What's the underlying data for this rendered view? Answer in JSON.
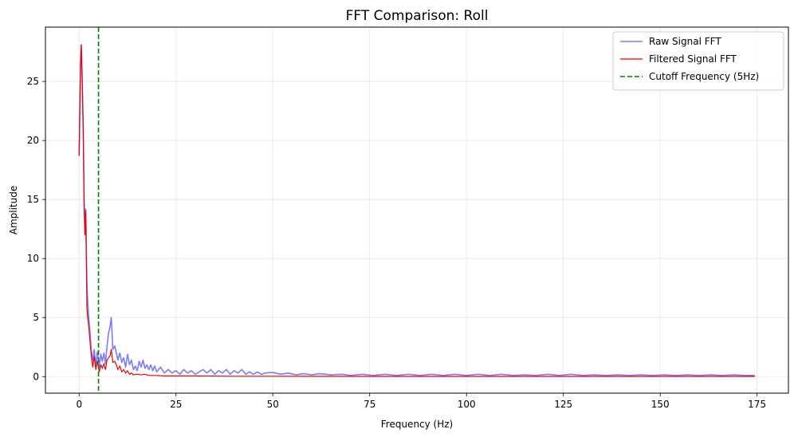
{
  "chart_data": {
    "type": "line",
    "title": "FFT Comparison: Roll",
    "xlabel": "Frequency (Hz)",
    "ylabel": "Amplitude",
    "xlim": [
      -8.7,
      183.1
    ],
    "ylim": [
      -1.4,
      29.6
    ],
    "xticks": [
      0,
      25,
      50,
      75,
      100,
      125,
      150,
      175
    ],
    "yticks": [
      0,
      5,
      10,
      15,
      20,
      25
    ],
    "grid": true,
    "legend_position": "top-right",
    "series": [
      {
        "name": "Raw Signal FFT",
        "color": "#7b7bff",
        "points": [
          [
            0.0,
            18.7
          ],
          [
            0.35,
            26.5
          ],
          [
            0.55,
            28.1
          ],
          [
            0.8,
            25.0
          ],
          [
            1.05,
            21.0
          ],
          [
            1.3,
            14.8
          ],
          [
            1.5,
            12.1
          ],
          [
            1.7,
            14.2
          ],
          [
            2.0,
            8.0
          ],
          [
            2.2,
            6.4
          ],
          [
            2.5,
            4.9
          ],
          [
            2.8,
            3.8
          ],
          [
            3.1,
            2.3
          ],
          [
            3.5,
            1.4
          ],
          [
            3.9,
            2.3
          ],
          [
            4.3,
            0.9
          ],
          [
            4.7,
            2.1
          ],
          [
            5.2,
            0.8
          ],
          [
            5.6,
            1.9
          ],
          [
            6.0,
            1.3
          ],
          [
            6.4,
            2.0
          ],
          [
            6.8,
            1.1
          ],
          [
            7.2,
            2.6
          ],
          [
            7.6,
            3.7
          ],
          [
            8.0,
            4.3
          ],
          [
            8.3,
            5.0
          ],
          [
            8.7,
            2.3
          ],
          [
            9.2,
            2.6
          ],
          [
            9.6,
            2.0
          ],
          [
            10.0,
            1.4
          ],
          [
            10.5,
            2.0
          ],
          [
            11.0,
            1.2
          ],
          [
            11.5,
            1.6
          ],
          [
            12.0,
            0.8
          ],
          [
            12.5,
            1.9
          ],
          [
            13.0,
            1.0
          ],
          [
            13.5,
            1.4
          ],
          [
            14.0,
            0.6
          ],
          [
            14.5,
            0.9
          ],
          [
            15.0,
            0.5
          ],
          [
            15.5,
            1.3
          ],
          [
            16.0,
            0.8
          ],
          [
            16.5,
            1.4
          ],
          [
            17.0,
            0.7
          ],
          [
            17.5,
            1.0
          ],
          [
            18.0,
            0.6
          ],
          [
            18.5,
            1.0
          ],
          [
            19.0,
            0.5
          ],
          [
            19.5,
            0.9
          ],
          [
            20.0,
            0.4
          ],
          [
            21.0,
            0.8
          ],
          [
            22.0,
            0.3
          ],
          [
            23.0,
            0.6
          ],
          [
            24.0,
            0.3
          ],
          [
            25.0,
            0.5
          ],
          [
            26.0,
            0.2
          ],
          [
            27.0,
            0.6
          ],
          [
            28.0,
            0.3
          ],
          [
            29.0,
            0.5
          ],
          [
            30.0,
            0.2
          ],
          [
            31.0,
            0.4
          ],
          [
            32.0,
            0.6
          ],
          [
            33.0,
            0.3
          ],
          [
            34.0,
            0.6
          ],
          [
            35.0,
            0.2
          ],
          [
            36.0,
            0.5
          ],
          [
            37.0,
            0.3
          ],
          [
            38.0,
            0.6
          ],
          [
            39.0,
            0.2
          ],
          [
            40.0,
            0.5
          ],
          [
            41.0,
            0.3
          ],
          [
            42.0,
            0.6
          ],
          [
            43.0,
            0.2
          ],
          [
            44.0,
            0.4
          ],
          [
            45.0,
            0.2
          ],
          [
            46.0,
            0.4
          ],
          [
            47.0,
            0.2
          ],
          [
            48.0,
            0.3
          ],
          [
            50.0,
            0.35
          ],
          [
            52.0,
            0.2
          ],
          [
            54.0,
            0.3
          ],
          [
            56.0,
            0.15
          ],
          [
            58.0,
            0.25
          ],
          [
            60.0,
            0.15
          ],
          [
            62.0,
            0.25
          ],
          [
            65.0,
            0.15
          ],
          [
            68.0,
            0.2
          ],
          [
            70.0,
            0.1
          ],
          [
            73.0,
            0.2
          ],
          [
            76.0,
            0.1
          ],
          [
            79.0,
            0.2
          ],
          [
            82.0,
            0.1
          ],
          [
            85.0,
            0.2
          ],
          [
            88.0,
            0.1
          ],
          [
            91.0,
            0.2
          ],
          [
            94.0,
            0.1
          ],
          [
            97.0,
            0.2
          ],
          [
            100.0,
            0.1
          ],
          [
            103.0,
            0.2
          ],
          [
            106.0,
            0.1
          ],
          [
            109.0,
            0.2
          ],
          [
            112.0,
            0.1
          ],
          [
            115.0,
            0.15
          ],
          [
            118.0,
            0.1
          ],
          [
            121.0,
            0.2
          ],
          [
            124.0,
            0.1
          ],
          [
            127.0,
            0.2
          ],
          [
            130.0,
            0.1
          ],
          [
            133.0,
            0.15
          ],
          [
            136.0,
            0.1
          ],
          [
            139.0,
            0.15
          ],
          [
            142.0,
            0.1
          ],
          [
            145.0,
            0.15
          ],
          [
            148.0,
            0.1
          ],
          [
            151.0,
            0.15
          ],
          [
            154.0,
            0.1
          ],
          [
            157.0,
            0.15
          ],
          [
            160.0,
            0.1
          ],
          [
            163.0,
            0.15
          ],
          [
            166.0,
            0.1
          ],
          [
            169.0,
            0.15
          ],
          [
            172.0,
            0.1
          ],
          [
            174.4,
            0.1
          ]
        ]
      },
      {
        "name": "Filtered Signal FFT",
        "color": "#ee0000",
        "points": [
          [
            0.0,
            18.7
          ],
          [
            0.35,
            26.5
          ],
          [
            0.55,
            28.1
          ],
          [
            0.8,
            25.0
          ],
          [
            1.05,
            21.0
          ],
          [
            1.3,
            14.2
          ],
          [
            1.5,
            12.0
          ],
          [
            1.7,
            14.0
          ],
          [
            2.0,
            5.9
          ],
          [
            2.2,
            5.0
          ],
          [
            2.5,
            4.2
          ],
          [
            2.8,
            3.0
          ],
          [
            3.1,
            1.9
          ],
          [
            3.5,
            0.8
          ],
          [
            3.9,
            1.7
          ],
          [
            4.3,
            0.6
          ],
          [
            4.7,
            1.3
          ],
          [
            5.2,
            0.4
          ],
          [
            5.6,
            1.0
          ],
          [
            6.0,
            0.7
          ],
          [
            6.4,
            1.1
          ],
          [
            6.8,
            0.6
          ],
          [
            7.2,
            1.4
          ],
          [
            7.6,
            1.6
          ],
          [
            8.0,
            1.8
          ],
          [
            8.3,
            2.3
          ],
          [
            8.7,
            1.2
          ],
          [
            9.2,
            1.3
          ],
          [
            9.6,
            1.0
          ],
          [
            10.0,
            0.6
          ],
          [
            10.5,
            0.9
          ],
          [
            11.0,
            0.4
          ],
          [
            11.5,
            0.6
          ],
          [
            12.0,
            0.3
          ],
          [
            12.5,
            0.5
          ],
          [
            13.0,
            0.2
          ],
          [
            13.5,
            0.3
          ],
          [
            14.0,
            0.15
          ],
          [
            15.0,
            0.2
          ],
          [
            16.0,
            0.15
          ],
          [
            17.0,
            0.2
          ],
          [
            18.0,
            0.1
          ],
          [
            20.0,
            0.1
          ],
          [
            22.0,
            0.05
          ],
          [
            25.0,
            0.05
          ],
          [
            30.0,
            0.05
          ],
          [
            40.0,
            0.03
          ],
          [
            50.0,
            0.03
          ],
          [
            75.0,
            0.02
          ],
          [
            100.0,
            0.02
          ],
          [
            125.0,
            0.02
          ],
          [
            150.0,
            0.02
          ],
          [
            174.4,
            0.02
          ]
        ]
      }
    ],
    "reference_lines": [
      {
        "name": "Cutoff Frequency (5Hz)",
        "x": 5,
        "color": "#008000",
        "style": "dashed"
      }
    ],
    "legend": [
      "Raw Signal FFT",
      "Filtered Signal FFT",
      "Cutoff Frequency (5Hz)"
    ]
  }
}
